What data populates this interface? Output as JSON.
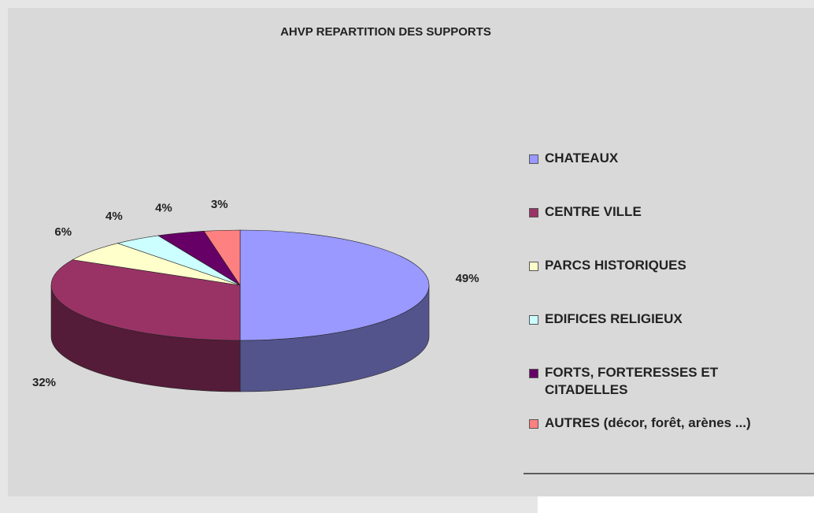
{
  "chart_data": {
    "type": "pie",
    "title": "AHVP REPARTITION DES SUPPORTS",
    "categories": [
      "CHATEAUX",
      "CENTRE VILLE",
      "PARCS HISTORIQUES",
      "EDIFICES RELIGIEUX",
      "FORTS, FORTERESSES ET CITADELLES",
      "AUTRES (décor, forêt, arènes ...)"
    ],
    "values": [
      49,
      32,
      6,
      4,
      4,
      3
    ],
    "value_labels": [
      "49%",
      "32%",
      "6%",
      "4%",
      "4%",
      "3%"
    ],
    "colors": [
      "#9999ff",
      "#993366",
      "#ffffcc",
      "#ccffff",
      "#660066",
      "#ff8080"
    ],
    "legend": "right"
  }
}
